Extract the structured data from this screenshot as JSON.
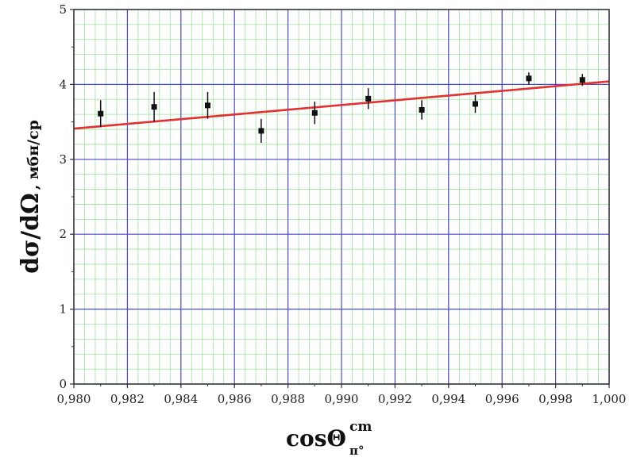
{
  "chart_data": {
    "type": "scatter",
    "xlabel": {
      "main": "cosΘ",
      "superscript": "cm",
      "subscript": "π°"
    },
    "ylabel": {
      "main": "dσ/dΩ",
      "unit": ", мбн/ср"
    },
    "xlim": [
      0.98,
      1.0
    ],
    "ylim": [
      0,
      5
    ],
    "x_ticks": [
      {
        "value": 0.98,
        "label": "0,980"
      },
      {
        "value": 0.982,
        "label": "0,982"
      },
      {
        "value": 0.984,
        "label": "0,984"
      },
      {
        "value": 0.986,
        "label": "0,986"
      },
      {
        "value": 0.988,
        "label": "0,988"
      },
      {
        "value": 0.99,
        "label": "0,990"
      },
      {
        "value": 0.992,
        "label": "0,992"
      },
      {
        "value": 0.994,
        "label": "0,994"
      },
      {
        "value": 0.996,
        "label": "0,996"
      },
      {
        "value": 0.998,
        "label": "0,998"
      },
      {
        "value": 1.0,
        "label": "1,000"
      }
    ],
    "y_ticks": [
      {
        "value": 0,
        "label": "0"
      },
      {
        "value": 1,
        "label": "1"
      },
      {
        "value": 2,
        "label": "2"
      },
      {
        "value": 3,
        "label": "3"
      },
      {
        "value": 4,
        "label": "4"
      },
      {
        "value": 5,
        "label": "5"
      }
    ],
    "grid": {
      "major": true,
      "minor": true,
      "major_color": "#4a4ad8",
      "minor_color": "#9be39b"
    },
    "points": [
      {
        "x": 0.981,
        "y": 3.61,
        "err": 0.18
      },
      {
        "x": 0.983,
        "y": 3.7,
        "err": 0.2
      },
      {
        "x": 0.985,
        "y": 3.72,
        "err": 0.18
      },
      {
        "x": 0.987,
        "y": 3.38,
        "err": 0.16
      },
      {
        "x": 0.989,
        "y": 3.62,
        "err": 0.15
      },
      {
        "x": 0.991,
        "y": 3.81,
        "err": 0.14
      },
      {
        "x": 0.993,
        "y": 3.66,
        "err": 0.13
      },
      {
        "x": 0.995,
        "y": 3.74,
        "err": 0.12
      },
      {
        "x": 0.997,
        "y": 4.08,
        "err": 0.08
      },
      {
        "x": 0.999,
        "y": 4.06,
        "err": 0.08
      }
    ],
    "fit_line": {
      "x": [
        0.98,
        1.0
      ],
      "y": [
        3.41,
        4.04
      ],
      "color": "#e53030"
    },
    "point_color": "#111111"
  }
}
